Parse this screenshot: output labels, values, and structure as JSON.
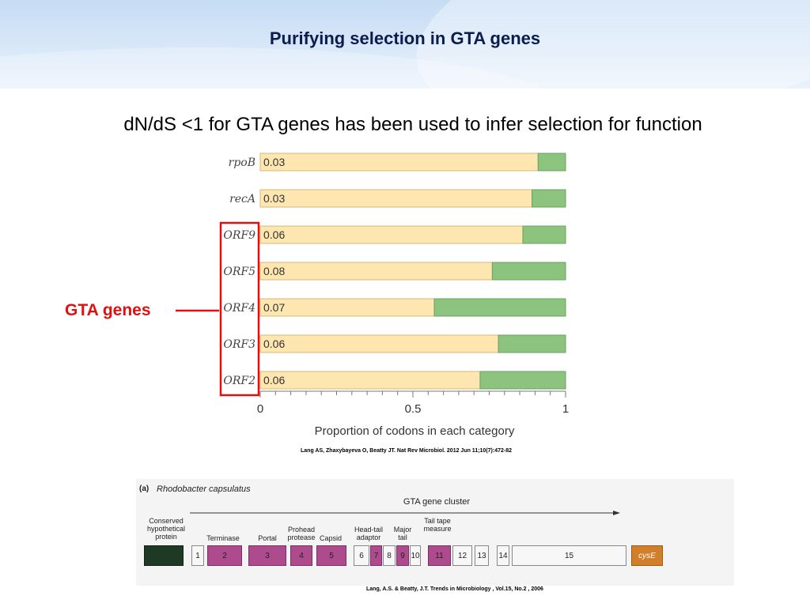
{
  "slide": {
    "title": "Purifying selection in GTA genes",
    "subtitle": "dN/dS <1 for GTA genes has been used to infer  selection for function",
    "gta_label": "GTA genes",
    "citation_top": "Lang AS, Zhaxybayeva O, Beatty JT. Nat Rev Microbiol. 2012 Jun 11;10(7):472-82",
    "citation_bottom": "Lang, A.S. & Beatty, J.T.  Trends in Microbiology , Vol.15, No.2 , 2006"
  },
  "colors": {
    "bar_primary": "#fde6b0",
    "bar_secondary": "#8cc47f",
    "highlight": "#e01010",
    "title": "#0b1d4f"
  },
  "chart_data": {
    "type": "bar",
    "orientation": "horizontal",
    "stacked": true,
    "categories": [
      "rpoB",
      "recA",
      "ORF9",
      "ORF5",
      "ORF4",
      "ORF3",
      "ORF2"
    ],
    "bar_labels": [
      "0.03",
      "0.03",
      "0.06",
      "0.08",
      "0.07",
      "0.06",
      "0.06"
    ],
    "series": [
      {
        "values": [
          0.91,
          0.89,
          0.86,
          0.76,
          0.57,
          0.78,
          0.72
        ]
      },
      {
        "values": [
          0.09,
          0.11,
          0.14,
          0.24,
          0.43,
          0.22,
          0.28
        ]
      }
    ],
    "xlim": [
      0,
      1
    ],
    "xticks": [
      0,
      0.5,
      1
    ],
    "xtick_labels": [
      "0",
      "0.5",
      "1"
    ],
    "xlabel": "Proportion of codons in each category",
    "highlighted_categories": [
      "ORF9",
      "ORF5",
      "ORF4",
      "ORF3",
      "ORF2"
    ]
  },
  "figure_b": {
    "panel_label": "(a)",
    "organism": "Rhodobacter capsulatus",
    "cluster_label": "GTA gene cluster",
    "annotations": [
      {
        "text": "Conserved hypothetical protein"
      },
      {
        "text": "Terminase"
      },
      {
        "text": "Portal"
      },
      {
        "text": "Prohead protease"
      },
      {
        "text": "Capsid"
      },
      {
        "text": "Head-tail adaptor"
      },
      {
        "text": "Major tail"
      },
      {
        "text": "Tail tape measure"
      }
    ],
    "genes": [
      {
        "label": "",
        "kind": "dark"
      },
      {
        "label": "1",
        "kind": "grey"
      },
      {
        "label": "2",
        "kind": "magenta"
      },
      {
        "label": "3",
        "kind": "magenta"
      },
      {
        "label": "4",
        "kind": "magenta"
      },
      {
        "label": "5",
        "kind": "magenta"
      },
      {
        "label": "6",
        "kind": "grey"
      },
      {
        "label": "7",
        "kind": "magenta"
      },
      {
        "label": "8",
        "kind": "grey"
      },
      {
        "label": "9",
        "kind": "magenta"
      },
      {
        "label": "10",
        "kind": "grey"
      },
      {
        "label": "11",
        "kind": "magenta"
      },
      {
        "label": "12",
        "kind": "grey"
      },
      {
        "label": "13",
        "kind": "grey"
      },
      {
        "label": "14",
        "kind": "grey"
      },
      {
        "label": "15",
        "kind": "grey"
      },
      {
        "label": "cysE",
        "kind": "orange"
      }
    ]
  }
}
